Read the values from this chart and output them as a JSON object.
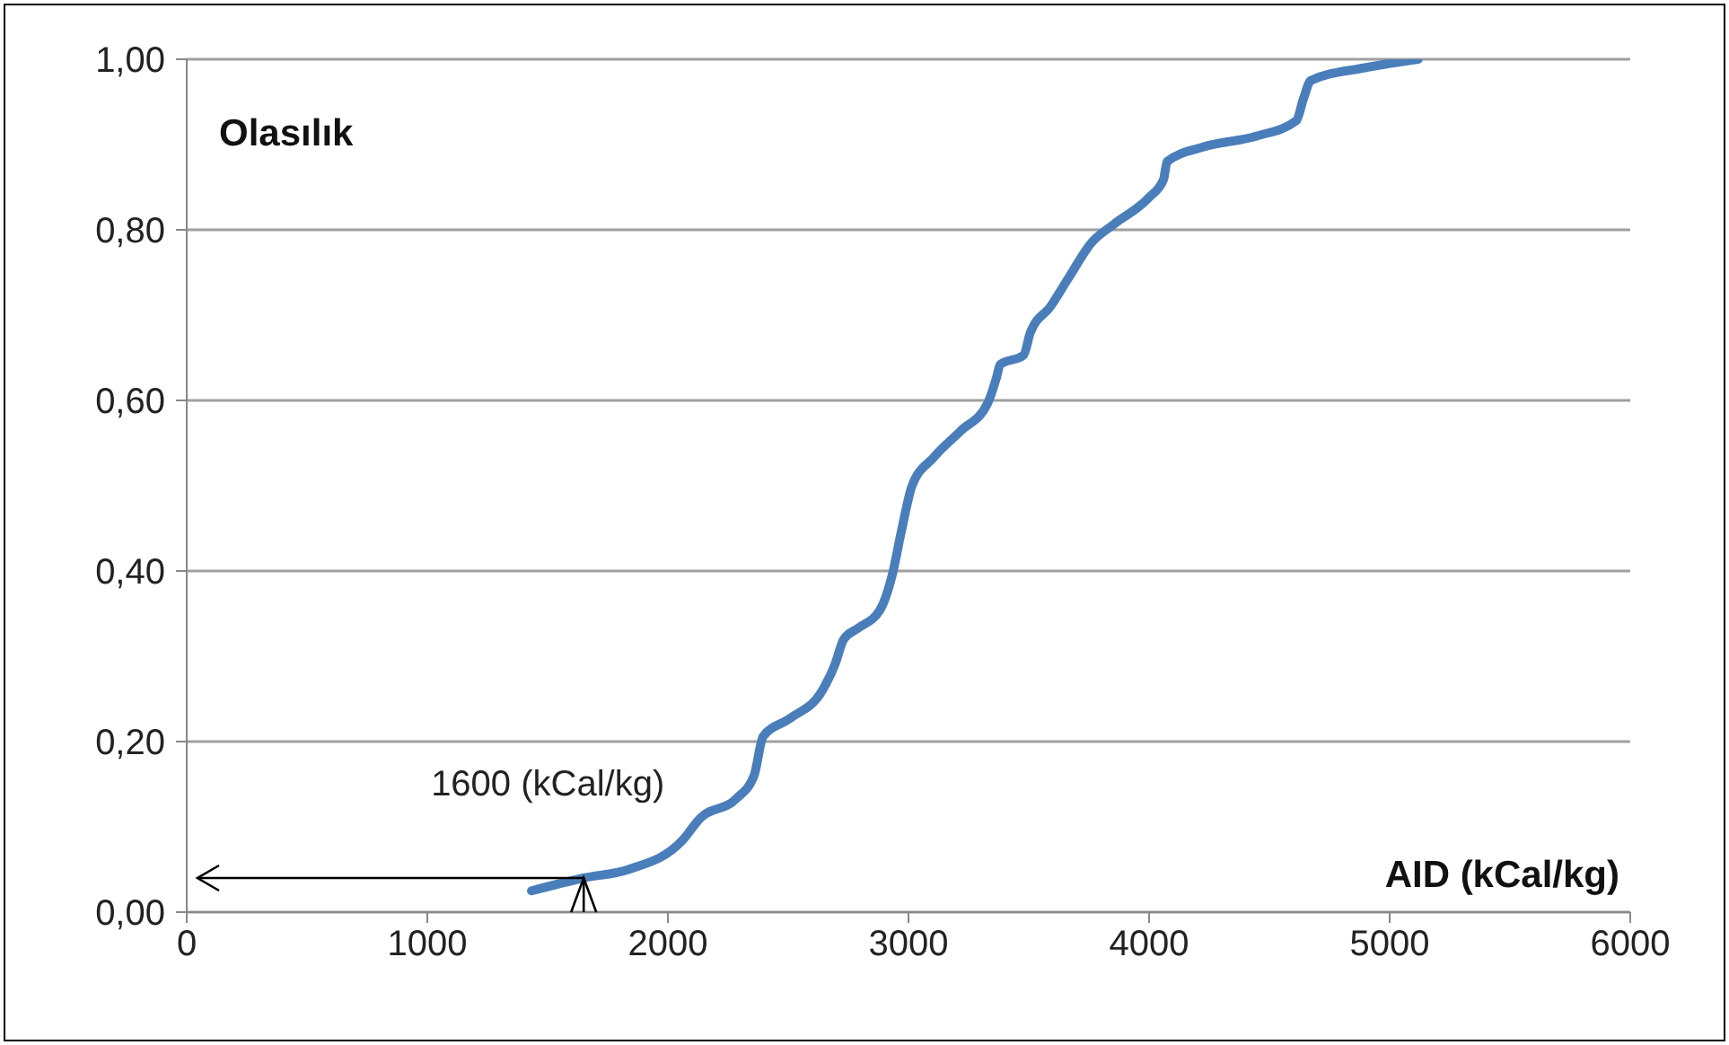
{
  "chart_data": {
    "type": "line",
    "xlabel": "AID (kCal/kg)",
    "ylabel": "Olasılık",
    "x": [
      1433,
      1649,
      1836,
      2060,
      2134,
      2284,
      2358,
      2396,
      2507,
      2642,
      2694,
      2731,
      2791,
      2881,
      2933,
      2970,
      3015,
      3104,
      3216,
      3328,
      3366,
      3381,
      3478,
      3507,
      3590,
      3664,
      3761,
      3851,
      4000,
      4060,
      4075,
      4224,
      4448,
      4612,
      4642,
      4672,
      4896,
      5119
    ],
    "series": [
      {
        "color": "#4a7ebb",
        "values": [
          0.025,
          0.04,
          0.05,
          0.084,
          0.11,
          0.133,
          0.16,
          0.206,
          0.227,
          0.26,
          0.29,
          0.32,
          0.333,
          0.354,
          0.396,
          0.446,
          0.5,
          0.533,
          0.564,
          0.596,
          0.627,
          0.642,
          0.653,
          0.68,
          0.71,
          0.743,
          0.785,
          0.806,
          0.838,
          0.859,
          0.88,
          0.897,
          0.91,
          0.928,
          0.954,
          0.975,
          0.99,
          1.0
        ]
      }
    ],
    "xlim": [
      0,
      6000
    ],
    "xticks": [
      0,
      1000,
      2000,
      3000,
      4000,
      5000,
      6000
    ],
    "ylim": [
      0,
      1
    ],
    "yticks": [
      {
        "value": 0,
        "label": "0,00"
      },
      {
        "value": 0.2,
        "label": "0,20"
      },
      {
        "value": 0.4,
        "label": "0,40"
      },
      {
        "value": 0.6,
        "label": "0,60"
      },
      {
        "value": 0.8,
        "label": "0,80"
      },
      {
        "value": 1,
        "label": "1,00"
      }
    ],
    "grid": "y",
    "marker": "none",
    "line_style": "solid",
    "annotations": [
      {
        "text": "1600 (kCal/kg)",
        "x": 1650,
        "y": 0.04
      }
    ]
  }
}
